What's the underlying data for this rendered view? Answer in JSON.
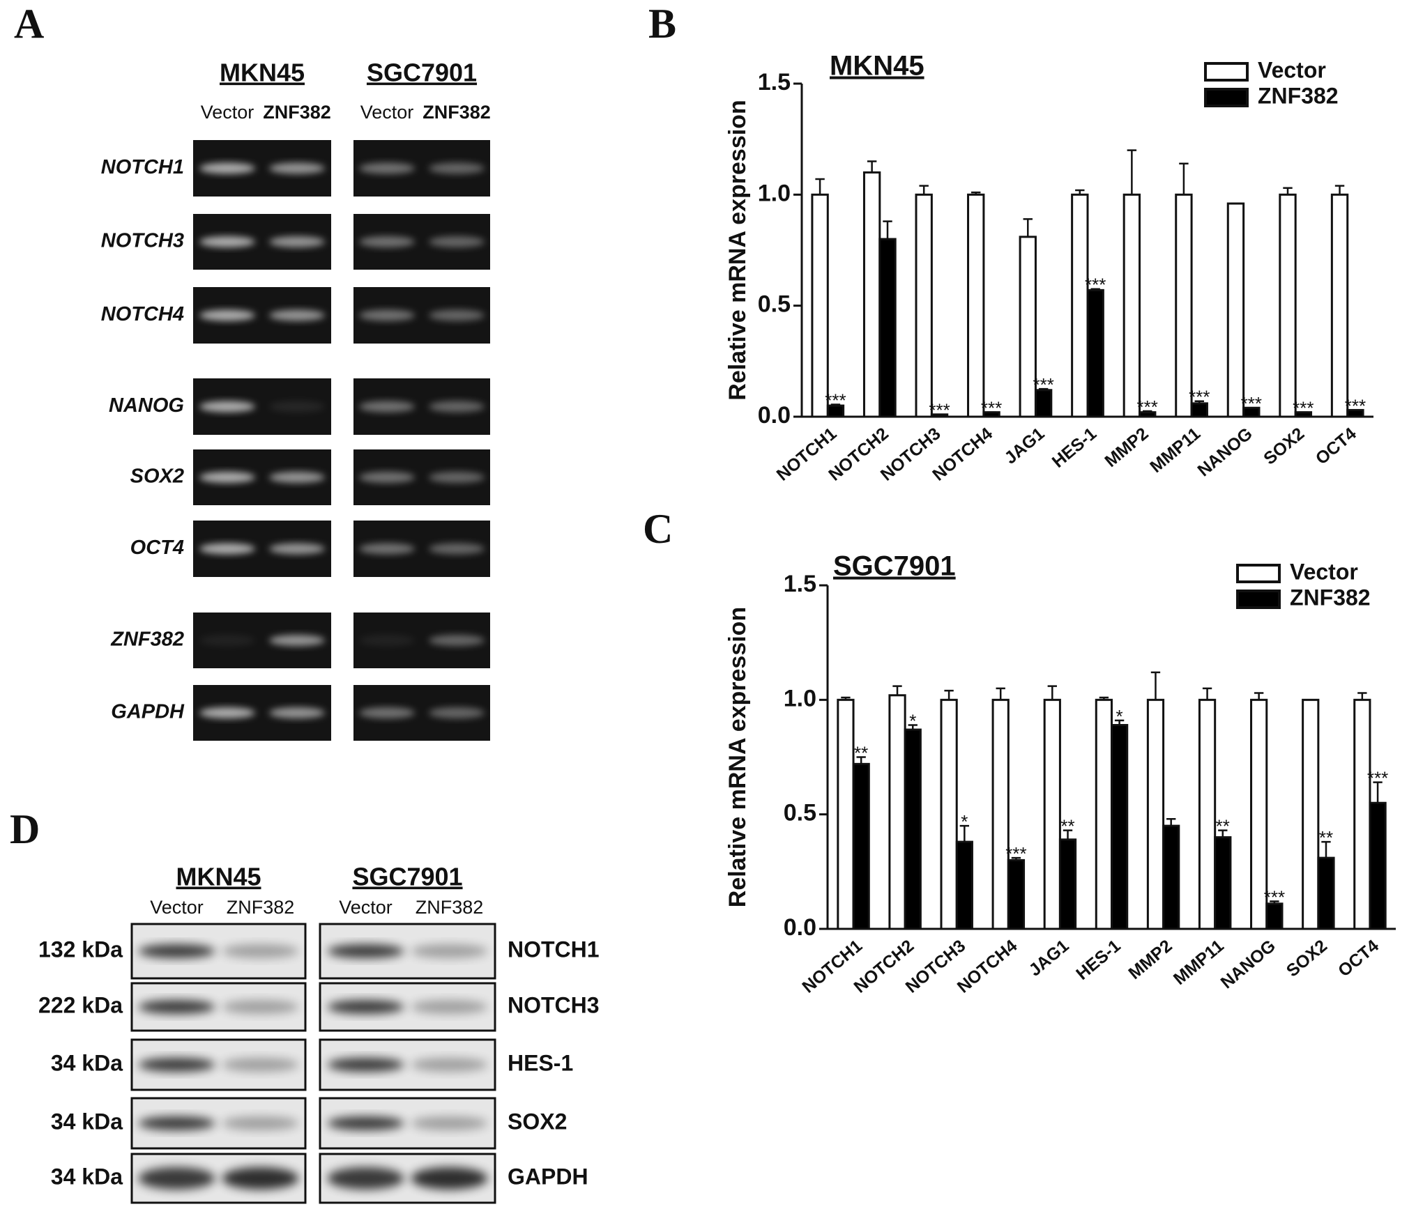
{
  "panel_labels": [
    "A",
    "B",
    "C",
    "D"
  ],
  "gel": {
    "cell_lines": [
      "MKN45",
      "SGC7901"
    ],
    "lanes": [
      "Vector",
      "ZNF382"
    ],
    "genes": [
      "NOTCH1",
      "NOTCH3",
      "NOTCH4",
      "NANOG",
      "SOX2",
      "OCT4",
      "ZNF382",
      "GAPDH"
    ]
  },
  "western": {
    "cell_lines": [
      "MKN45",
      "SGC7901"
    ],
    "lanes": [
      "Vector",
      "ZNF382"
    ],
    "sizes": [
      "132 kDa",
      "222 kDa",
      "34 kDa",
      "34 kDa",
      "34 kDa"
    ],
    "proteins": [
      "NOTCH1",
      "NOTCH3",
      "HES-1",
      "SOX2",
      "GAPDH"
    ]
  },
  "chart_data": [
    {
      "type": "bar",
      "title": "MKN45",
      "y_label": "Relative mRNA expression",
      "categories": [
        "NOTCH1",
        "NOTCH2",
        "NOTCH3",
        "NOTCH4",
        "JAG1",
        "HES-1",
        "MMP2",
        "MMP11",
        "NANOG",
        "SOX2",
        "OCT4"
      ],
      "series": [
        {
          "name": "Vector",
          "color": "#ffffff",
          "values": [
            1.0,
            1.1,
            1.0,
            1.0,
            0.81,
            1.0,
            1.0,
            1.0,
            0.96,
            1.0,
            1.0
          ],
          "errors": [
            0.07,
            0.05,
            0.04,
            0.01,
            0.08,
            0.02,
            0.2,
            0.14,
            0,
            0.03,
            0.04
          ]
        },
        {
          "name": "ZNF382",
          "color": "#000000",
          "values": [
            0.05,
            0.8,
            0.01,
            0.02,
            0.12,
            0.57,
            0.02,
            0.06,
            0.04,
            0.02,
            0.03
          ],
          "errors": [
            0.005,
            0.08,
            0,
            0,
            0.005,
            0.005,
            0.005,
            0.01,
            0,
            0,
            0
          ],
          "significance": [
            "***",
            null,
            "***",
            "***",
            "***",
            "***",
            "***",
            "***",
            "***",
            "***",
            "***"
          ]
        }
      ],
      "ylim": [
        0,
        1.5
      ],
      "yticks": [
        {
          "value": 0,
          "label": "0.0"
        },
        0.5,
        {
          "value": 1,
          "label": "1.0"
        },
        1.5
      ],
      "grid": false,
      "legend": "top-right"
    },
    {
      "type": "bar",
      "title": "SGC7901",
      "y_label": "Relative mRNA expression",
      "categories": [
        "NOTCH1",
        "NOTCH2",
        "NOTCH3",
        "NOTCH4",
        "JAG1",
        "HES-1",
        "MMP2",
        "MMP11",
        "NANOG",
        "SOX2",
        "OCT4"
      ],
      "series": [
        {
          "name": "Vector",
          "color": "#ffffff",
          "values": [
            1.0,
            1.02,
            1.0,
            1.0,
            1.0,
            1.0,
            1.0,
            1.0,
            1.0,
            1.0,
            1.0
          ],
          "errors": [
            0.01,
            0.04,
            0.04,
            0.05,
            0.06,
            0.01,
            0.12,
            0.05,
            0.03,
            0,
            0.03
          ]
        },
        {
          "name": "ZNF382",
          "color": "#000000",
          "values": [
            0.72,
            0.87,
            0.38,
            0.3,
            0.39,
            0.89,
            0.45,
            0.4,
            0.11,
            0.31,
            0.55
          ],
          "errors": [
            0.03,
            0.02,
            0.07,
            0.01,
            0.04,
            0.02,
            0.03,
            0.03,
            0.01,
            0.07,
            0.09
          ],
          "significance": [
            "**",
            "*",
            "*",
            "***",
            "**",
            "*",
            null,
            "**",
            "***",
            "**",
            "***"
          ]
        }
      ],
      "ylim": [
        0,
        1.5
      ],
      "yticks": [
        {
          "value": 0,
          "label": "0.0"
        },
        0.5,
        {
          "value": 1,
          "label": "1.0"
        },
        1.5
      ],
      "grid": false,
      "legend": "top-right"
    }
  ]
}
